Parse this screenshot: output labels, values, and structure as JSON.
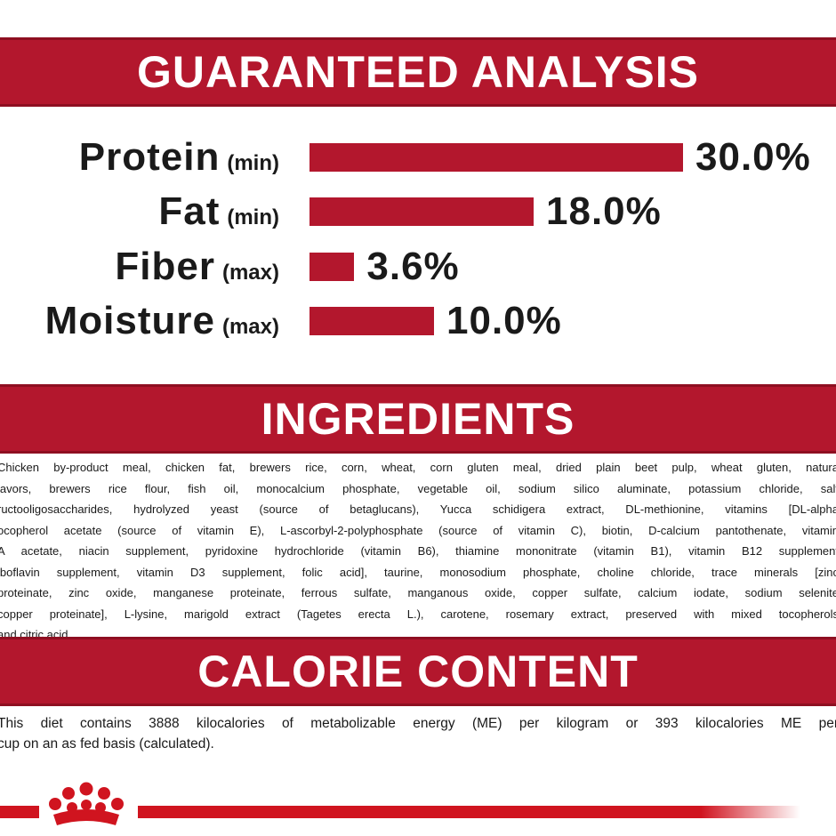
{
  "analysis": {
    "title": "GUARANTEED ANALYSIS",
    "rows": [
      {
        "name": "Protein",
        "qualifier": "(min)",
        "value": 30.0,
        "value_label": "30.0%"
      },
      {
        "name": "Fat",
        "qualifier": "(min)",
        "value": 18.0,
        "value_label": "18.0%"
      },
      {
        "name": "Fiber",
        "qualifier": "(max)",
        "value": 3.6,
        "value_label": "3.6%"
      },
      {
        "name": "Moisture",
        "qualifier": "(max)",
        "value": 10.0,
        "value_label": "10.0%"
      }
    ]
  },
  "ingredients": {
    "title": "INGREDIENTS",
    "lines": [
      "Chicken by-product meal, chicken fat, brewers rice, corn, wheat, corn gluten meal, dried plain beet pulp, wheat gluten, natura",
      "lavors, brewers rice flour, fish oil, monocalcium phosphate, vegetable oil, sodium silico aluminate, potassium chloride, salt",
      "ructooligosaccharides, hydrolyzed yeast (source of betaglucans), Yucca schidigera extract, DL-methionine, vitamins [DL-alpha",
      "ocopherol acetate (source of vitamin E), L-ascorbyl-2-polyphosphate (source of vitamin C), biotin, D-calcium pantothenate, vitamin",
      "A acetate, niacin supplement, pyridoxine hydrochloride (vitamin B6), thiamine mononitrate (vitamin B1), vitamin B12 supplement",
      "iboflavin supplement, vitamin D3 supplement, folic acid], taurine, monosodium phosphate, choline chloride, trace minerals [zinc",
      "proteinate, zinc oxide, manganese proteinate, ferrous sulfate, manganous oxide, copper sulfate, calcium iodate, sodium selenite",
      "copper proteinate], L-lysine, marigold extract (Tagetes erecta L.), carotene, rosemary extract, preserved with mixed tocopherols",
      "and citric acid."
    ]
  },
  "calorie": {
    "title": "CALORIE CONTENT",
    "lines": [
      "This diet contains 3888 kilocalories of metabolizable energy (ME) per kilogram or 393 kilocalories ME per",
      "cup on an as fed basis (calculated)."
    ]
  }
}
